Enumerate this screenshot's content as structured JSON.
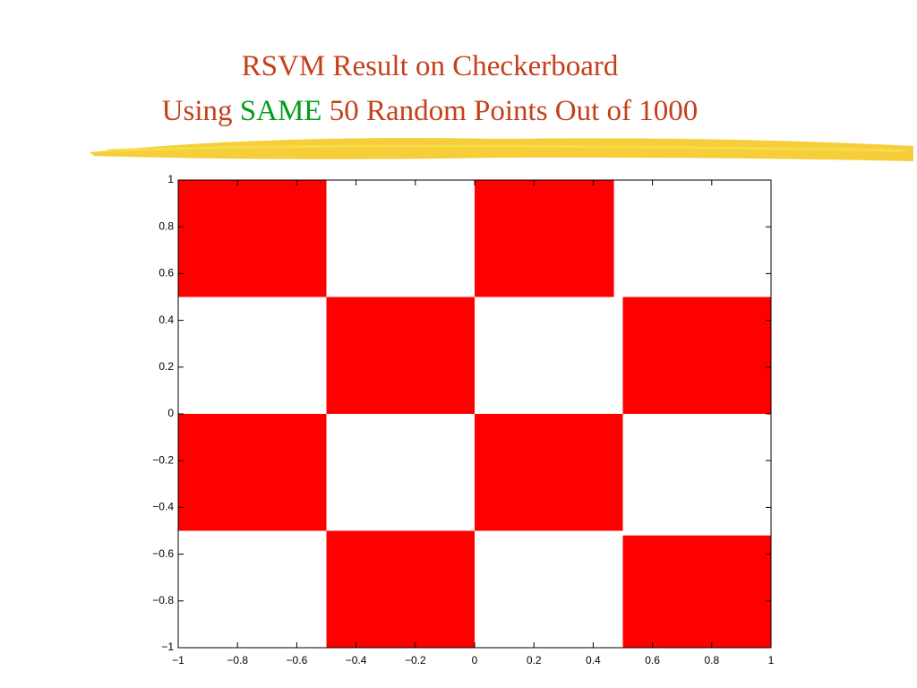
{
  "chart_data": {
    "type": "regions",
    "title": "RSVM Result on Checkerboard",
    "subtitle_parts": [
      "Using",
      "SAME",
      "50 Random Points Out of 1000"
    ],
    "color": "#ff0000",
    "regions": [
      {
        "x": [
          -1,
          -0.5
        ],
        "y": [
          0.5,
          1
        ]
      },
      {
        "x": [
          -0.5,
          0
        ],
        "y": [
          0,
          0.5
        ]
      },
      {
        "x": [
          0,
          0.47
        ],
        "y": [
          0.5,
          1
        ]
      },
      {
        "x": [
          0.5,
          1
        ],
        "y": [
          0,
          0.5
        ]
      },
      {
        "x": [
          -1,
          -0.5
        ],
        "y": [
          -0.5,
          0
        ]
      },
      {
        "x": [
          0,
          0.5
        ],
        "y": [
          -0.5,
          0
        ]
      },
      {
        "x": [
          -0.5,
          0
        ],
        "y": [
          -1,
          -0.5
        ]
      },
      {
        "x": [
          0.5,
          1
        ],
        "y": [
          -1,
          -0.52
        ]
      }
    ],
    "xlim": [
      -1,
      1
    ],
    "ylim": [
      -1,
      1
    ],
    "xticks": [
      {
        "value": -1,
        "label": "−1"
      },
      {
        "value": -0.8,
        "label": "−0.8"
      },
      {
        "value": -0.6,
        "label": "−0.6"
      },
      {
        "value": -0.4,
        "label": "−0.4"
      },
      {
        "value": -0.2,
        "label": "−0.2"
      },
      0,
      0.2,
      0.4,
      0.6,
      0.8,
      1
    ],
    "yticks": [
      {
        "value": -1,
        "label": "−1"
      },
      {
        "value": -0.8,
        "label": "−0.8"
      },
      {
        "value": -0.6,
        "label": "−0.6"
      },
      {
        "value": -0.4,
        "label": "−0.4"
      },
      {
        "value": -0.2,
        "label": "−0.2"
      },
      0,
      0.2,
      0.4,
      0.6,
      0.8,
      1
    ]
  }
}
